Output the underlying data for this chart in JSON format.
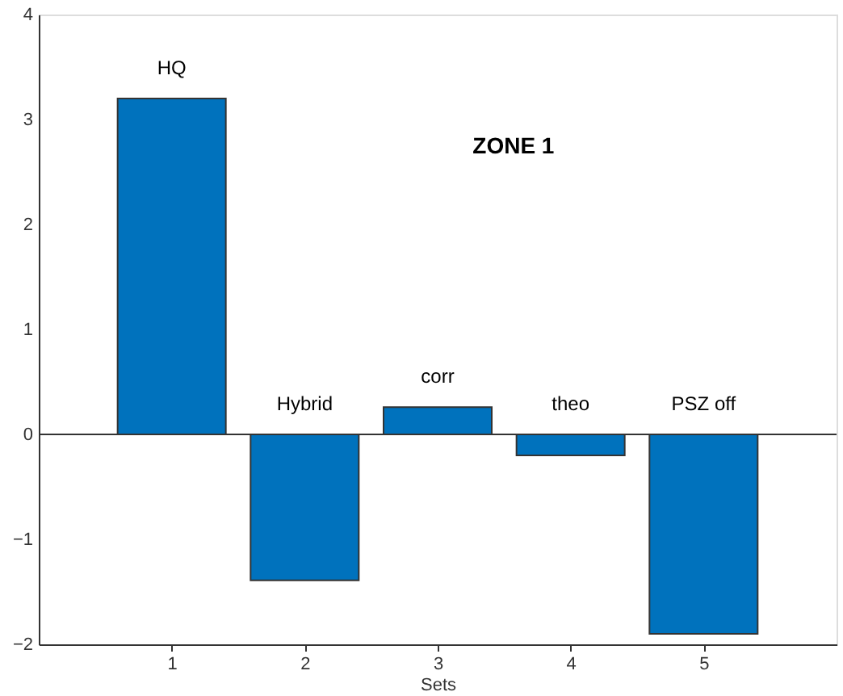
{
  "chart_data": {
    "type": "bar",
    "xlabel": "Sets",
    "x": [
      1,
      2,
      3,
      4,
      5
    ],
    "values": [
      3.2,
      -1.39,
      0.26,
      -0.2,
      -1.9
    ],
    "color": "#0072bd",
    "xlim": [
      0,
      6
    ],
    "xticks": [
      1,
      2,
      3,
      4,
      5
    ],
    "ylim": [
      -2,
      4
    ],
    "yticks": [
      -2,
      -1,
      0,
      1,
      2,
      3,
      4
    ],
    "grid": false,
    "ref_lines": [
      {
        "axis": "y",
        "value": 0
      }
    ],
    "annotations": [
      "HQ",
      "Hybrid",
      "corr",
      "theo",
      "PSZ off",
      "ZONE 1"
    ]
  }
}
